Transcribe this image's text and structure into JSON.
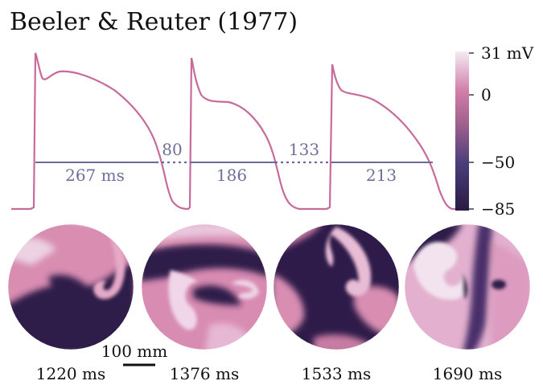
{
  "title": "Beeler & Reuter (1977)",
  "colors": {
    "trace": "#c86a9a",
    "apd_line": "#6b6b9a",
    "apd_text": "#6f6f9a",
    "map_dark": "#2b1845",
    "map_mid": "#c8739d",
    "map_light": "#f1d9ea"
  },
  "trace": {
    "apd_labels": [
      "267 ms",
      "186",
      "213"
    ],
    "di_labels": [
      "80",
      "133"
    ]
  },
  "colorbar": {
    "unit_label": "31 mV",
    "tick_labels": [
      "0",
      "−50",
      "−85"
    ],
    "range_mV": [
      -85,
      31
    ]
  },
  "snapshots": {
    "times": [
      "1220 ms",
      "1376 ms",
      "1533 ms",
      "1690 ms"
    ]
  },
  "scalebar": {
    "label": "100 mm"
  }
}
